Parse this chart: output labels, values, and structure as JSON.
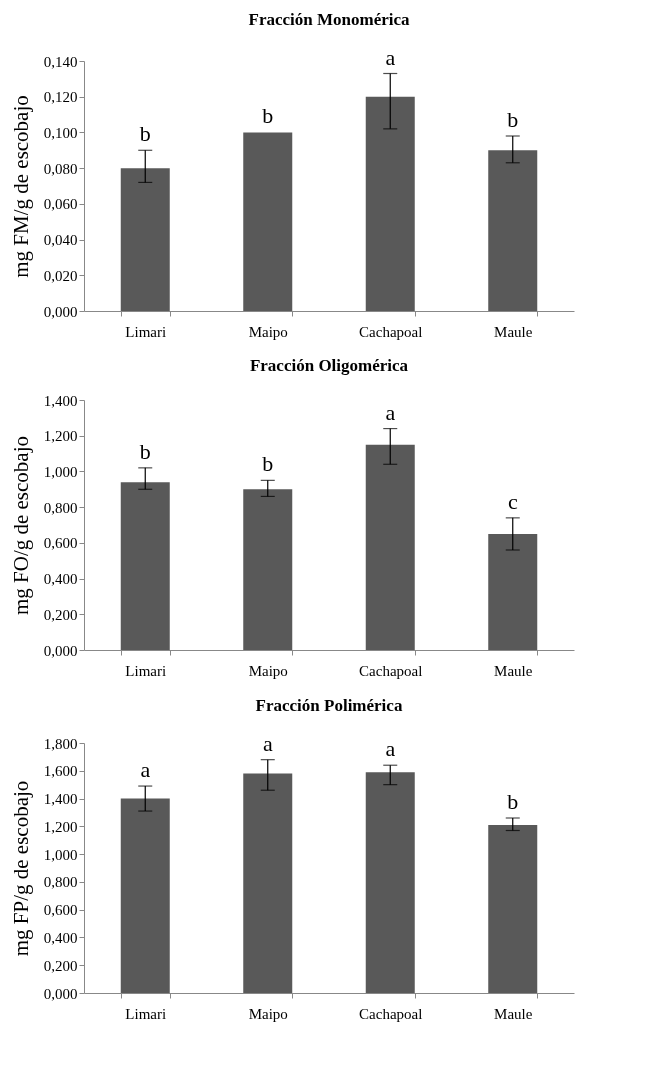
{
  "chart_data": [
    {
      "type": "bar",
      "title": "Fracción Monomérica",
      "ylabel": "mg FM/g de escobajo",
      "categories": [
        "Limari",
        "Maipo",
        "Cachapoal",
        "Maule"
      ],
      "values": [
        0.08,
        0.1,
        0.12,
        0.09
      ],
      "errors": [
        [
          0.072,
          0.09
        ],
        null,
        [
          0.102,
          0.133
        ],
        [
          0.083,
          0.098
        ]
      ],
      "color": "#595959",
      "ylim": [
        0,
        0.14
      ],
      "yticks": [
        {
          "value": 0,
          "label": "0,000"
        },
        {
          "value": 0.02,
          "label": "0,020"
        },
        {
          "value": 0.04,
          "label": "0,040"
        },
        {
          "value": 0.06,
          "label": "0,060"
        },
        {
          "value": 0.08,
          "label": "0,080"
        },
        {
          "value": 0.1,
          "label": "0,100"
        },
        {
          "value": 0.12,
          "label": "0,120"
        },
        {
          "value": 0.14,
          "label": "0,140"
        }
      ],
      "grid": false,
      "annotations": [
        "b",
        "b",
        "a",
        "b"
      ]
    },
    {
      "type": "bar",
      "title": "Fracción Oligomérica",
      "ylabel": "mg FO/g de escobajo",
      "categories": [
        "Limari",
        "Maipo",
        "Cachapoal",
        "Maule"
      ],
      "values": [
        0.94,
        0.9,
        1.15,
        0.65
      ],
      "errors": [
        [
          0.9,
          1.02
        ],
        [
          0.86,
          0.95
        ],
        [
          1.04,
          1.24
        ],
        [
          0.56,
          0.74
        ]
      ],
      "color": "#595959",
      "ylim": [
        0,
        1.4
      ],
      "yticks": [
        {
          "value": 0,
          "label": "0,000"
        },
        {
          "value": 0.2,
          "label": "0,200"
        },
        {
          "value": 0.4,
          "label": "0,400"
        },
        {
          "value": 0.6,
          "label": "0,600"
        },
        {
          "value": 0.8,
          "label": "0,800"
        },
        {
          "value": 1.0,
          "label": "1,000"
        },
        {
          "value": 1.2,
          "label": "1,200"
        },
        {
          "value": 1.4,
          "label": "1,400"
        }
      ],
      "grid": false,
      "annotations": [
        "b",
        "b",
        "a",
        "c"
      ]
    },
    {
      "type": "bar",
      "title": "Fracción Polimérica",
      "ylabel": "mg FP/g de escobajo",
      "categories": [
        "Limari",
        "Maipo",
        "Cachapoal",
        "Maule"
      ],
      "values": [
        1.4,
        1.58,
        1.59,
        1.21
      ],
      "errors": [
        [
          1.31,
          1.49
        ],
        [
          1.46,
          1.68
        ],
        [
          1.5,
          1.64
        ],
        [
          1.17,
          1.26
        ]
      ],
      "color": "#595959",
      "ylim": [
        0,
        1.8
      ],
      "yticks": [
        {
          "value": 0,
          "label": "0,000"
        },
        {
          "value": 0.2,
          "label": "0,200"
        },
        {
          "value": 0.4,
          "label": "0,400"
        },
        {
          "value": 0.6,
          "label": "0,600"
        },
        {
          "value": 0.8,
          "label": "0,800"
        },
        {
          "value": 1.0,
          "label": "1,000"
        },
        {
          "value": 1.2,
          "label": "1,200"
        },
        {
          "value": 1.4,
          "label": "1,400"
        },
        {
          "value": 1.6,
          "label": "1,600"
        },
        {
          "value": 1.8,
          "label": "1,800"
        }
      ],
      "grid": false,
      "annotations": [
        "a",
        "a",
        "a",
        "b"
      ]
    }
  ]
}
